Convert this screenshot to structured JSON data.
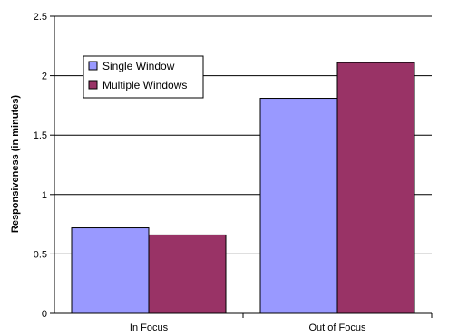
{
  "chart_data": {
    "type": "bar",
    "title": "",
    "xlabel": "",
    "ylabel": "Responsiveness (in minutes)",
    "ylim": [
      0,
      2.5
    ],
    "yticks": [
      "0",
      "0.5",
      "1",
      "1.5",
      "2",
      "2.5"
    ],
    "grid": true,
    "legend_position": "top-left",
    "categories": [
      "In Focus",
      "Out of Focus"
    ],
    "series": [
      {
        "name": "Single Window",
        "color": "#9999ff",
        "values": [
          0.72,
          1.81
        ]
      },
      {
        "name": "Multiple Windows",
        "color": "#993366",
        "values": [
          0.66,
          2.11
        ]
      }
    ]
  }
}
